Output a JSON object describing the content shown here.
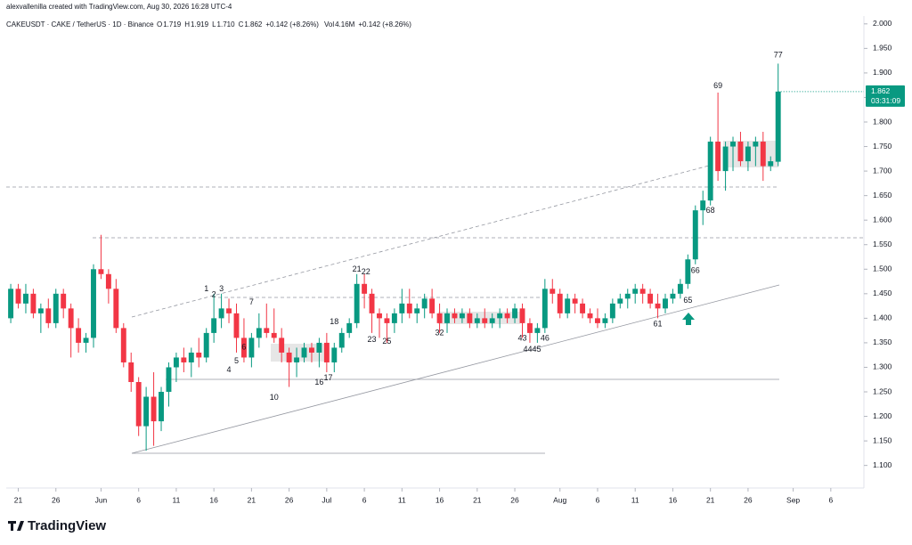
{
  "header": {
    "credit": "alexvallenilla created with TradingView.com, Aug 30, 2026 16:28 UTC-4",
    "symbol": "CAKEUSDT · CAKE / TetherUS · 1D · Binance",
    "ohlc": [
      {
        "key": "O",
        "value": "1.719"
      },
      {
        "key": "H",
        "value": "1.919"
      },
      {
        "key": "L",
        "value": "1.710"
      },
      {
        "key": "C",
        "value": "1.862"
      }
    ],
    "change": "+0.142 (+8.26%)",
    "volume_key": "Vol",
    "volume": "4.16M",
    "volume_change": "+0.142 (+8.26%)"
  },
  "chart_data": {
    "type": "candlestick",
    "up_color": "#089981",
    "down_color": "#f23645",
    "open": [
      1.4,
      1.46,
      1.43,
      1.45,
      1.41,
      1.42,
      1.39,
      1.45,
      1.42,
      1.38,
      1.35,
      1.36,
      1.5,
      1.49,
      1.46,
      1.38,
      1.31,
      1.27,
      1.18,
      1.24,
      1.19,
      1.25,
      1.3,
      1.32,
      1.31,
      1.33,
      1.32,
      1.37,
      1.4,
      1.42,
      1.41,
      1.36,
      1.32,
      1.36,
      1.38,
      1.37,
      1.36,
      1.33,
      1.31,
      1.32,
      1.34,
      1.33,
      1.35,
      1.31,
      1.34,
      1.37,
      1.39,
      1.47,
      1.45,
      1.41,
      1.4,
      1.39,
      1.41,
      1.43,
      1.41,
      1.42,
      1.44,
      1.41,
      1.39,
      1.41,
      1.4,
      1.41,
      1.39,
      1.4,
      1.39,
      1.4,
      1.41,
      1.4,
      1.42,
      1.39,
      1.37,
      1.38,
      1.46,
      1.45,
      1.41,
      1.44,
      1.43,
      1.41,
      1.4,
      1.39,
      1.4,
      1.43,
      1.44,
      1.45,
      1.46,
      1.45,
      1.43,
      1.42,
      1.44,
      1.45,
      1.47,
      1.52,
      1.62,
      1.64,
      1.76,
      1.7,
      1.75,
      1.76,
      1.72,
      1.75,
      1.76,
      1.71,
      1.719
    ],
    "high": [
      1.47,
      1.47,
      1.47,
      1.46,
      1.43,
      1.44,
      1.46,
      1.46,
      1.43,
      1.4,
      1.37,
      1.51,
      1.57,
      1.5,
      1.48,
      1.39,
      1.33,
      1.28,
      1.26,
      1.29,
      1.26,
      1.31,
      1.33,
      1.34,
      1.34,
      1.36,
      1.38,
      1.45,
      1.45,
      1.44,
      1.43,
      1.4,
      1.37,
      1.41,
      1.43,
      1.42,
      1.38,
      1.34,
      1.34,
      1.35,
      1.35,
      1.36,
      1.37,
      1.35,
      1.38,
      1.4,
      1.49,
      1.49,
      1.46,
      1.42,
      1.41,
      1.42,
      1.46,
      1.46,
      1.43,
      1.45,
      1.46,
      1.43,
      1.42,
      1.42,
      1.42,
      1.42,
      1.41,
      1.42,
      1.41,
      1.42,
      1.42,
      1.43,
      1.43,
      1.4,
      1.39,
      1.48,
      1.48,
      1.46,
      1.45,
      1.45,
      1.44,
      1.42,
      1.42,
      1.41,
      1.44,
      1.45,
      1.46,
      1.47,
      1.47,
      1.46,
      1.45,
      1.45,
      1.46,
      1.48,
      1.53,
      1.63,
      1.66,
      1.77,
      1.86,
      1.76,
      1.77,
      1.78,
      1.76,
      1.77,
      1.78,
      1.73,
      1.919
    ],
    "low": [
      1.39,
      1.42,
      1.41,
      1.4,
      1.37,
      1.38,
      1.38,
      1.4,
      1.32,
      1.33,
      1.33,
      1.34,
      1.48,
      1.43,
      1.37,
      1.3,
      1.25,
      1.16,
      1.13,
      1.14,
      1.17,
      1.22,
      1.27,
      1.29,
      1.28,
      1.3,
      1.31,
      1.35,
      1.38,
      1.39,
      1.33,
      1.31,
      1.3,
      1.34,
      1.36,
      1.35,
      1.31,
      1.26,
      1.28,
      1.31,
      1.31,
      1.3,
      1.29,
      1.29,
      1.33,
      1.36,
      1.38,
      1.42,
      1.37,
      1.36,
      1.35,
      1.37,
      1.39,
      1.4,
      1.39,
      1.4,
      1.4,
      1.37,
      1.37,
      1.39,
      1.39,
      1.38,
      1.38,
      1.38,
      1.38,
      1.38,
      1.39,
      1.39,
      1.36,
      1.35,
      1.35,
      1.37,
      1.43,
      1.4,
      1.4,
      1.41,
      1.4,
      1.39,
      1.38,
      1.38,
      1.39,
      1.42,
      1.42,
      1.43,
      1.43,
      1.42,
      1.4,
      1.41,
      1.43,
      1.44,
      1.46,
      1.51,
      1.59,
      1.63,
      1.68,
      1.66,
      1.7,
      1.71,
      1.7,
      1.71,
      1.68,
      1.7,
      1.71
    ],
    "close": [
      1.46,
      1.43,
      1.45,
      1.41,
      1.42,
      1.39,
      1.45,
      1.42,
      1.38,
      1.35,
      1.36,
      1.5,
      1.49,
      1.46,
      1.38,
      1.31,
      1.27,
      1.18,
      1.24,
      1.19,
      1.25,
      1.3,
      1.32,
      1.31,
      1.33,
      1.32,
      1.37,
      1.4,
      1.42,
      1.41,
      1.36,
      1.32,
      1.36,
      1.38,
      1.37,
      1.36,
      1.33,
      1.31,
      1.32,
      1.34,
      1.33,
      1.35,
      1.31,
      1.34,
      1.37,
      1.39,
      1.47,
      1.45,
      1.41,
      1.4,
      1.39,
      1.41,
      1.43,
      1.41,
      1.42,
      1.44,
      1.41,
      1.39,
      1.41,
      1.4,
      1.41,
      1.39,
      1.4,
      1.39,
      1.4,
      1.41,
      1.4,
      1.42,
      1.39,
      1.37,
      1.38,
      1.46,
      1.45,
      1.41,
      1.44,
      1.43,
      1.41,
      1.4,
      1.39,
      1.4,
      1.43,
      1.44,
      1.45,
      1.46,
      1.45,
      1.43,
      1.42,
      1.44,
      1.45,
      1.47,
      1.52,
      1.62,
      1.64,
      1.76,
      1.7,
      1.75,
      1.76,
      1.72,
      1.75,
      1.76,
      1.71,
      1.72,
      1.862
    ],
    "xlim": [
      -0.6,
      113.4
    ],
    "xticks": [
      {
        "value": 1,
        "label": "21"
      },
      {
        "value": 6,
        "label": "26"
      },
      {
        "value": 12,
        "label": "Jun"
      },
      {
        "value": 17,
        "label": "6"
      },
      {
        "value": 22,
        "label": "11"
      },
      {
        "value": 27,
        "label": "16"
      },
      {
        "value": 32,
        "label": "21"
      },
      {
        "value": 37,
        "label": "26"
      },
      {
        "value": 42,
        "label": "Jul"
      },
      {
        "value": 47,
        "label": "6"
      },
      {
        "value": 52,
        "label": "11"
      },
      {
        "value": 57,
        "label": "16"
      },
      {
        "value": 62,
        "label": "21"
      },
      {
        "value": 67,
        "label": "26"
      },
      {
        "value": 73,
        "label": "Aug"
      },
      {
        "value": 78,
        "label": "6"
      },
      {
        "value": 83,
        "label": "11"
      },
      {
        "value": 88,
        "label": "16"
      },
      {
        "value": 93,
        "label": "21"
      },
      {
        "value": 98,
        "label": "26"
      },
      {
        "value": 104,
        "label": "Sep"
      },
      {
        "value": 109,
        "label": "6"
      }
    ],
    "ylim": [
      1.054,
      2.016
    ],
    "yticks": [
      {
        "value": 2.0,
        "label": "2.000"
      },
      {
        "value": 1.95,
        "label": "1.950"
      },
      {
        "value": 1.9,
        "label": "1.900"
      },
      {
        "value": 1.85,
        "label": "1.850"
      },
      {
        "value": 1.8,
        "label": "1.800"
      },
      {
        "value": 1.75,
        "label": "1.750"
      },
      {
        "value": 1.7,
        "label": "1.700"
      },
      {
        "value": 1.65,
        "label": "1.650"
      },
      {
        "value": 1.6,
        "label": "1.600"
      },
      {
        "value": 1.55,
        "label": "1.550"
      },
      {
        "value": 1.5,
        "label": "1.500"
      },
      {
        "value": 1.45,
        "label": "1.450"
      },
      {
        "value": 1.4,
        "label": "1.400"
      },
      {
        "value": 1.35,
        "label": "1.350"
      },
      {
        "value": 1.3,
        "label": "1.300"
      },
      {
        "value": 1.25,
        "label": "1.250"
      },
      {
        "value": 1.2,
        "label": "1.200"
      },
      {
        "value": 1.15,
        "label": "1.150"
      },
      {
        "value": 1.1,
        "label": "1.100"
      }
    ],
    "annotations": [
      {
        "text": "1",
        "x": 26,
        "y": 1.459
      },
      {
        "text": "2",
        "x": 27,
        "y": 1.448
      },
      {
        "text": "3",
        "x": 28,
        "y": 1.459
      },
      {
        "text": "7",
        "x": 32,
        "y": 1.432
      },
      {
        "text": "4",
        "x": 29,
        "y": 1.294
      },
      {
        "text": "5",
        "x": 30,
        "y": 1.312
      },
      {
        "text": "6",
        "x": 31,
        "y": 1.341
      },
      {
        "text": "10",
        "x": 35,
        "y": 1.238
      },
      {
        "text": "16",
        "x": 41,
        "y": 1.269
      },
      {
        "text": "17",
        "x": 42.2,
        "y": 1.278
      },
      {
        "text": "18",
        "x": 43,
        "y": 1.392
      },
      {
        "text": "21",
        "x": 46,
        "y": 1.499
      },
      {
        "text": "22",
        "x": 47.2,
        "y": 1.494
      },
      {
        "text": "23",
        "x": 48,
        "y": 1.356
      },
      {
        "text": "25",
        "x": 50,
        "y": 1.352
      },
      {
        "text": "32",
        "x": 57,
        "y": 1.37
      },
      {
        "text": "43",
        "x": 68,
        "y": 1.359
      },
      {
        "text": "4445",
        "x": 69.3,
        "y": 1.336
      },
      {
        "text": "46",
        "x": 71,
        "y": 1.359
      },
      {
        "text": "61",
        "x": 86,
        "y": 1.388
      },
      {
        "text": "65",
        "x": 90,
        "y": 1.436
      },
      {
        "text": "66",
        "x": 91,
        "y": 1.497
      },
      {
        "text": "68",
        "x": 93,
        "y": 1.619
      },
      {
        "text": "69",
        "x": 94,
        "y": 1.873
      },
      {
        "text": "77",
        "x": 102,
        "y": 1.936
      }
    ],
    "last_price": {
      "value": 1.862,
      "label": "1.862"
    },
    "countdown": "03:31:09"
  },
  "footer": {
    "brand": "TradingView"
  }
}
